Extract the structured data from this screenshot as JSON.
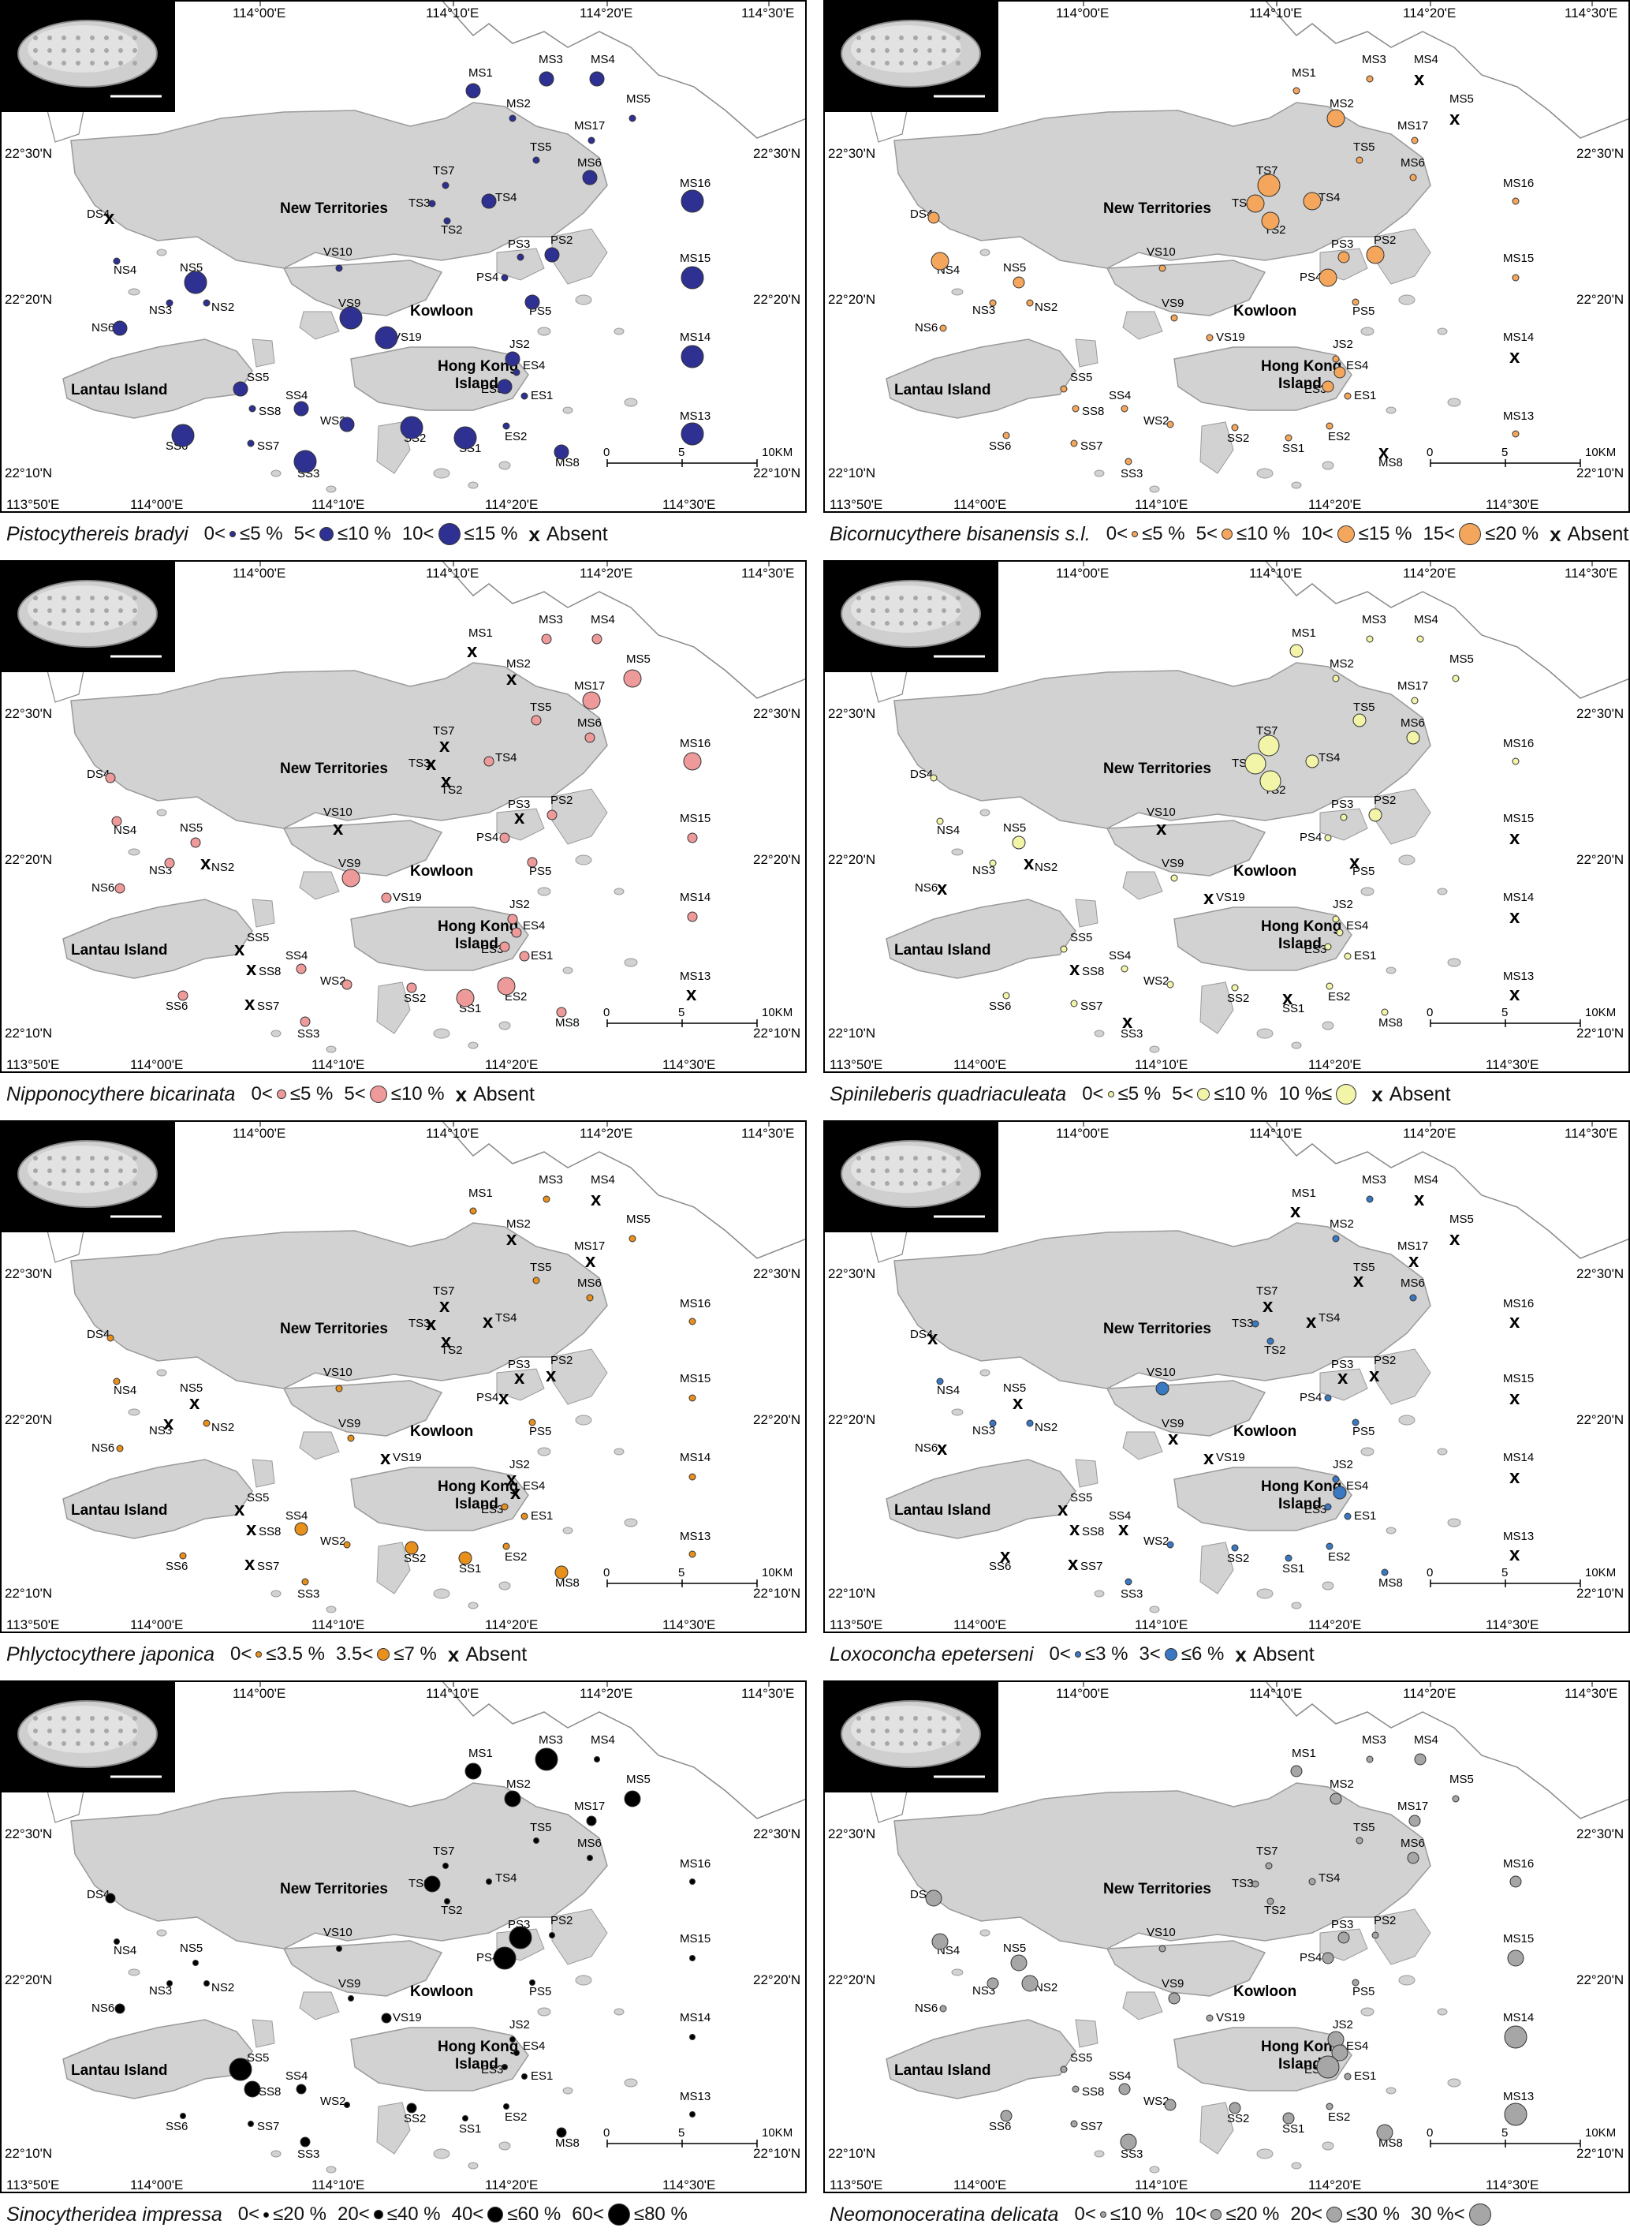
{
  "map_labels": {
    "new_territories": "New Territories",
    "kowloon": "Kowloon",
    "lantau": "Lantau Island",
    "hong_kong_island": "Hong Kong Island",
    "lon_ticks": [
      "113°50'E",
      "114°00'E",
      "114°10'E",
      "114°20'E",
      "114°30'E"
    ],
    "lat_ticks": [
      "22°30'N",
      "22°20'N",
      "22°10'N"
    ],
    "scale_labels": [
      "0",
      "5",
      "10KM"
    ]
  },
  "stations": [
    "MS1",
    "MS2",
    "MS3",
    "MS4",
    "MS5",
    "MS17",
    "TS5",
    "MS6",
    "MS16",
    "TS7",
    "TS3",
    "TS4",
    "TS2",
    "DS4",
    "VS10",
    "PS3",
    "PS2",
    "PS4",
    "PS5",
    "MS15",
    "NS4",
    "NS5",
    "NS3",
    "NS2",
    "VS9",
    "NS6",
    "VS19",
    "MS14",
    "JS2",
    "ES4",
    "ES3",
    "ES1",
    "SS5",
    "SS8",
    "SS4",
    "WS2",
    "SS2",
    "SS7",
    "SS6",
    "ES2",
    "SS3",
    "SS1",
    "MS8",
    "MS13"
  ],
  "panels": [
    {
      "species": "Pistocythereis bradyi",
      "color": "#2e3192",
      "legend": [
        {
          "lo": "0<",
          "hi": "≤5 %",
          "size": 6
        },
        {
          "lo": "5<",
          "hi": "≤10 %",
          "size": 16
        },
        {
          "lo": "10<",
          "hi": "≤15 %",
          "size": 26
        }
      ],
      "absent_label": "Absent"
    },
    {
      "species": "Bicornucythere bisanensis s.l.",
      "color": "#f3a65c",
      "legend": [
        {
          "lo": "0<",
          "hi": "≤5 %",
          "size": 6
        },
        {
          "lo": "5<",
          "hi": "≤10 %",
          "size": 12
        },
        {
          "lo": "10<",
          "hi": "≤15 %",
          "size": 20
        },
        {
          "lo": "15<",
          "hi": "≤20 %",
          "size": 26
        }
      ],
      "absent_label": "Absent"
    },
    {
      "species": "Nipponocythere bicarinata",
      "color": "#ef9a9a",
      "legend": [
        {
          "lo": "0<",
          "hi": "≤5 %",
          "size": 10
        },
        {
          "lo": "5<",
          "hi": "≤10 %",
          "size": 20
        }
      ],
      "absent_label": "Absent"
    },
    {
      "species": "Spinileberis quadriaculeata",
      "color": "#f2f4a8",
      "legend": [
        {
          "lo": "0<",
          "hi": "≤5 %",
          "size": 6
        },
        {
          "lo": "5<",
          "hi": "≤10 %",
          "size": 14
        },
        {
          "lo": "10 %≤",
          "hi": "",
          "size": 24
        }
      ],
      "absent_label": "Absent"
    },
    {
      "species": "Phlyctocythere japonica",
      "color": "#e8901c",
      "legend": [
        {
          "lo": "0<",
          "hi": "≤3.5 %",
          "size": 6
        },
        {
          "lo": "3.5<",
          "hi": "≤7 %",
          "size": 14
        }
      ],
      "absent_label": "Absent"
    },
    {
      "species": "Loxoconcha epeterseni",
      "color": "#3a78c2",
      "legend": [
        {
          "lo": "0<",
          "hi": "≤3 %",
          "size": 6
        },
        {
          "lo": "3<",
          "hi": "≤6 %",
          "size": 14
        }
      ],
      "absent_label": "Absent"
    },
    {
      "species": "Sinocytheridea impressa",
      "color": "#000000",
      "legend": [
        {
          "lo": "0<",
          "hi": "≤20 %",
          "size": 5
        },
        {
          "lo": "20<",
          "hi": "≤40 %",
          "size": 10
        },
        {
          "lo": "40<",
          "hi": "≤60 %",
          "size": 18
        },
        {
          "lo": "60<",
          "hi": "≤80 %",
          "size": 26
        }
      ],
      "absent_label": ""
    },
    {
      "species": "Neomonoceratina delicata",
      "color": "#a6a6a6",
      "legend": [
        {
          "lo": "0<",
          "hi": "≤10 %",
          "size": 6
        },
        {
          "lo": "10<",
          "hi": "≤20 %",
          "size": 12
        },
        {
          "lo": "20<",
          "hi": "≤30 %",
          "size": 18
        },
        {
          "lo": "30 %<",
          "hi": "",
          "size": 26
        }
      ],
      "absent_label": ""
    }
  ],
  "markers": [
    {
      "MS1": 2,
      "MS2": 1,
      "MS3": 2,
      "MS4": 2,
      "MS5": 1,
      "MS17": 1,
      "TS5": 1,
      "MS6": 2,
      "MS16": 3,
      "TS7": 1,
      "TS3": 1,
      "TS4": 2,
      "TS2": 1,
      "DS4": "x",
      "VS10": 1,
      "PS3": 1,
      "PS2": 2,
      "PS4": 1,
      "PS5": 2,
      "MS15": 3,
      "NS4": 1,
      "NS5": 3,
      "NS3": 1,
      "NS2": 1,
      "VS9": 3,
      "NS6": 2,
      "VS19": 3,
      "MS14": 3,
      "JS2": 2,
      "ES4": 1,
      "ES3": 2,
      "ES1": 1,
      "SS5": 2,
      "SS8": 1,
      "SS4": 2,
      "WS2": 2,
      "SS2": 3,
      "SS7": 1,
      "SS6": 3,
      "ES2": 1,
      "SS3": 3,
      "SS1": 3,
      "MS8": 2,
      "MS13": 3
    },
    {
      "MS1": 1,
      "MS2": 3,
      "MS3": 1,
      "MS4": "x",
      "MS5": "x",
      "MS17": 1,
      "TS5": 1,
      "MS6": 1,
      "MS16": 1,
      "TS7": 4,
      "TS3": 3,
      "TS4": 3,
      "TS2": 3,
      "DS4": 2,
      "VS10": 1,
      "PS3": 2,
      "PS2": 3,
      "PS4": 3,
      "PS5": 1,
      "MS15": 1,
      "NS4": 3,
      "NS5": 2,
      "NS3": 1,
      "NS2": 1,
      "VS9": 1,
      "NS6": 1,
      "VS19": 1,
      "MS14": "x",
      "JS2": 1,
      "ES4": 2,
      "ES3": 2,
      "ES1": 1,
      "SS5": 1,
      "SS8": 1,
      "SS4": 1,
      "WS2": 1,
      "SS2": 1,
      "SS7": 1,
      "SS6": 1,
      "ES2": 1,
      "SS3": 1,
      "SS1": 1,
      "MS8": "x",
      "MS13": 1
    },
    {
      "MS1": "x",
      "MS2": "x",
      "MS3": 1,
      "MS4": 1,
      "MS5": 2,
      "MS17": 2,
      "TS5": 1,
      "MS6": 1,
      "MS16": 2,
      "TS7": "x",
      "TS3": "x",
      "TS4": 1,
      "TS2": "x",
      "DS4": 1,
      "VS10": "x",
      "PS3": "x",
      "PS2": 1,
      "PS4": 1,
      "PS5": 1,
      "MS15": 1,
      "NS4": 1,
      "NS5": 1,
      "NS3": 1,
      "NS2": "x",
      "VS9": 2,
      "NS6": 1,
      "VS19": 1,
      "MS14": 1,
      "JS2": 1,
      "ES4": 1,
      "ES3": 1,
      "ES1": 1,
      "SS5": "x",
      "SS8": "x",
      "SS4": 1,
      "WS2": 1,
      "SS2": 1,
      "SS7": "x",
      "SS6": 1,
      "ES2": 2,
      "SS3": 1,
      "SS1": 2,
      "MS8": 1,
      "MS13": "x"
    },
    {
      "MS1": 2,
      "MS2": 1,
      "MS3": 1,
      "MS4": 1,
      "MS5": 1,
      "MS17": 1,
      "TS5": 2,
      "MS6": 2,
      "MS16": 1,
      "TS7": 3,
      "TS3": 3,
      "TS4": 2,
      "TS2": 3,
      "DS4": 1,
      "VS10": "x",
      "PS3": 1,
      "PS2": 2,
      "PS4": 1,
      "PS5": "x",
      "MS15": "x",
      "NS4": 1,
      "NS5": 2,
      "NS3": 1,
      "NS2": "x",
      "VS9": 1,
      "NS6": "x",
      "VS19": "x",
      "MS14": "x",
      "JS2": 1,
      "ES4": 1,
      "ES3": 1,
      "ES1": 1,
      "SS5": 1,
      "SS8": "x",
      "SS4": 1,
      "WS2": 1,
      "SS2": 1,
      "SS7": 1,
      "SS6": 1,
      "ES2": 1,
      "SS3": "x",
      "SS1": "x",
      "MS8": 1,
      "MS13": "x"
    },
    {
      "MS1": 1,
      "MS2": "x",
      "MS3": 1,
      "MS4": "x",
      "MS5": 1,
      "MS17": "x",
      "TS5": 1,
      "MS6": 1,
      "MS16": 1,
      "TS7": "x",
      "TS3": "x",
      "TS4": "x",
      "TS2": "x",
      "DS4": 1,
      "VS10": 1,
      "PS3": "x",
      "PS2": "x",
      "PS4": "x",
      "PS5": 1,
      "MS15": 1,
      "NS4": 1,
      "NS5": "x",
      "NS3": "x",
      "NS2": 1,
      "VS9": 1,
      "NS6": 1,
      "VS19": "x",
      "MS14": 1,
      "JS2": "x",
      "ES4": "x",
      "ES3": 1,
      "ES1": 1,
      "SS5": "x",
      "SS8": "x",
      "SS4": 2,
      "WS2": 1,
      "SS2": 2,
      "SS7": "x",
      "SS6": 1,
      "ES2": 1,
      "SS3": 1,
      "SS1": 2,
      "MS8": 2,
      "MS13": 1
    },
    {
      "MS1": "x",
      "MS2": 1,
      "MS3": 1,
      "MS4": "x",
      "MS5": "x",
      "MS17": "x",
      "TS5": "x",
      "MS6": 1,
      "MS16": "x",
      "TS7": "x",
      "TS3": 1,
      "TS4": "x",
      "TS2": 1,
      "DS4": "x",
      "VS10": 2,
      "PS3": "x",
      "PS2": "x",
      "PS4": 1,
      "PS5": 1,
      "MS15": "x",
      "NS4": 1,
      "NS5": "x",
      "NS3": 1,
      "NS2": 1,
      "VS9": "x",
      "NS6": "x",
      "VS19": "x",
      "MS14": "x",
      "JS2": 1,
      "ES4": 2,
      "ES3": 1,
      "ES1": 1,
      "SS5": "x",
      "SS8": "x",
      "SS4": "x",
      "WS2": 1,
      "SS2": 1,
      "SS7": "x",
      "SS6": "x",
      "ES2": 1,
      "SS3": 1,
      "SS1": 1,
      "MS8": 1,
      "MS13": "x"
    },
    {
      "MS1": 3,
      "MS2": 3,
      "MS3": 4,
      "MS4": 1,
      "MS5": 3,
      "MS17": 2,
      "TS5": 1,
      "MS6": 1,
      "MS16": 1,
      "TS7": 1,
      "TS3": 3,
      "TS4": 1,
      "TS2": 1,
      "DS4": 2,
      "VS10": 1,
      "PS3": 4,
      "PS2": 1,
      "PS4": 4,
      "PS5": 1,
      "MS15": 1,
      "NS4": 1,
      "NS5": 1,
      "NS3": 1,
      "NS2": 1,
      "VS9": 1,
      "NS6": 2,
      "VS19": 2,
      "MS14": 1,
      "JS2": 1,
      "ES4": 1,
      "ES3": 1,
      "ES1": 1,
      "SS5": 4,
      "SS8": 3,
      "SS4": 2,
      "WS2": 1,
      "SS2": 2,
      "SS7": 1,
      "SS6": 1,
      "ES2": 1,
      "SS3": 2,
      "SS1": 1,
      "MS8": 2,
      "MS13": 1
    },
    {
      "MS1": 2,
      "MS2": 2,
      "MS3": 1,
      "MS4": 2,
      "MS5": 1,
      "MS17": 2,
      "TS5": 1,
      "MS6": 2,
      "MS16": 2,
      "TS7": 1,
      "TS3": 1,
      "TS4": 1,
      "TS2": 1,
      "DS4": 3,
      "VS10": 1,
      "PS3": 2,
      "PS2": 1,
      "PS4": 2,
      "PS5": 1,
      "MS15": 3,
      "NS4": 3,
      "NS5": 3,
      "NS3": 2,
      "NS2": 3,
      "VS9": 2,
      "NS6": 1,
      "VS19": 1,
      "MS14": 4,
      "JS2": 3,
      "ES4": 3,
      "ES3": 4,
      "ES1": 1,
      "SS5": 1,
      "SS8": 1,
      "SS4": 2,
      "WS2": 2,
      "SS2": 2,
      "SS7": 1,
      "SS6": 2,
      "ES2": 1,
      "SS3": 3,
      "SS1": 2,
      "MS8": 3,
      "MS13": 4
    }
  ]
}
